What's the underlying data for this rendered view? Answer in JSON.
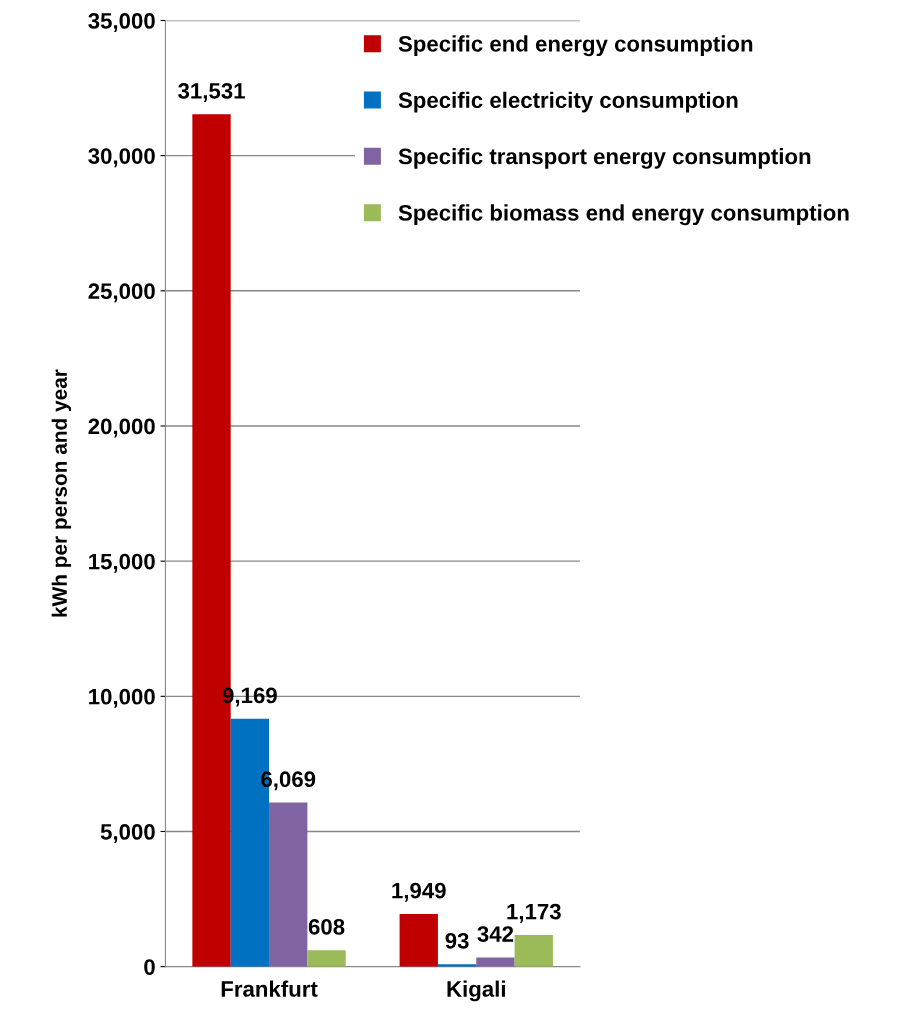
{
  "chart_data": {
    "type": "bar",
    "ylabel": "kWh per person and year",
    "categories": [
      "Frankfurt",
      "Kigali"
    ],
    "series": [
      {
        "name": "Specific end energy consumption",
        "color": "#c00000",
        "values": [
          31531,
          1949
        ],
        "value_labels": [
          "31,531",
          "1,949"
        ]
      },
      {
        "name": "Specific electricity consumption",
        "color": "#0070c0",
        "values": [
          9169,
          93
        ],
        "value_labels": [
          "9,169",
          "93"
        ]
      },
      {
        "name": "Specific transport energy consumption",
        "color": "#8064a2",
        "values": [
          6069,
          342
        ],
        "value_labels": [
          "6,069",
          "342"
        ]
      },
      {
        "name": "Specific biomass end energy consumption",
        "color": "#9bbb59",
        "values": [
          608,
          1173
        ],
        "value_labels": [
          "608",
          "1,173"
        ]
      }
    ],
    "ylim": [
      0,
      35000
    ],
    "yticks": [
      {
        "value": 0,
        "label": "0"
      },
      {
        "value": 5000,
        "label": "5,000"
      },
      {
        "value": 10000,
        "label": "10,000"
      },
      {
        "value": 15000,
        "label": "15,000"
      },
      {
        "value": 20000,
        "label": "20,000"
      },
      {
        "value": 25000,
        "label": "25,000"
      },
      {
        "value": 30000,
        "label": "30,000"
      },
      {
        "value": 35000,
        "label": "35,000"
      }
    ],
    "grid": "y",
    "legend": "top right"
  }
}
